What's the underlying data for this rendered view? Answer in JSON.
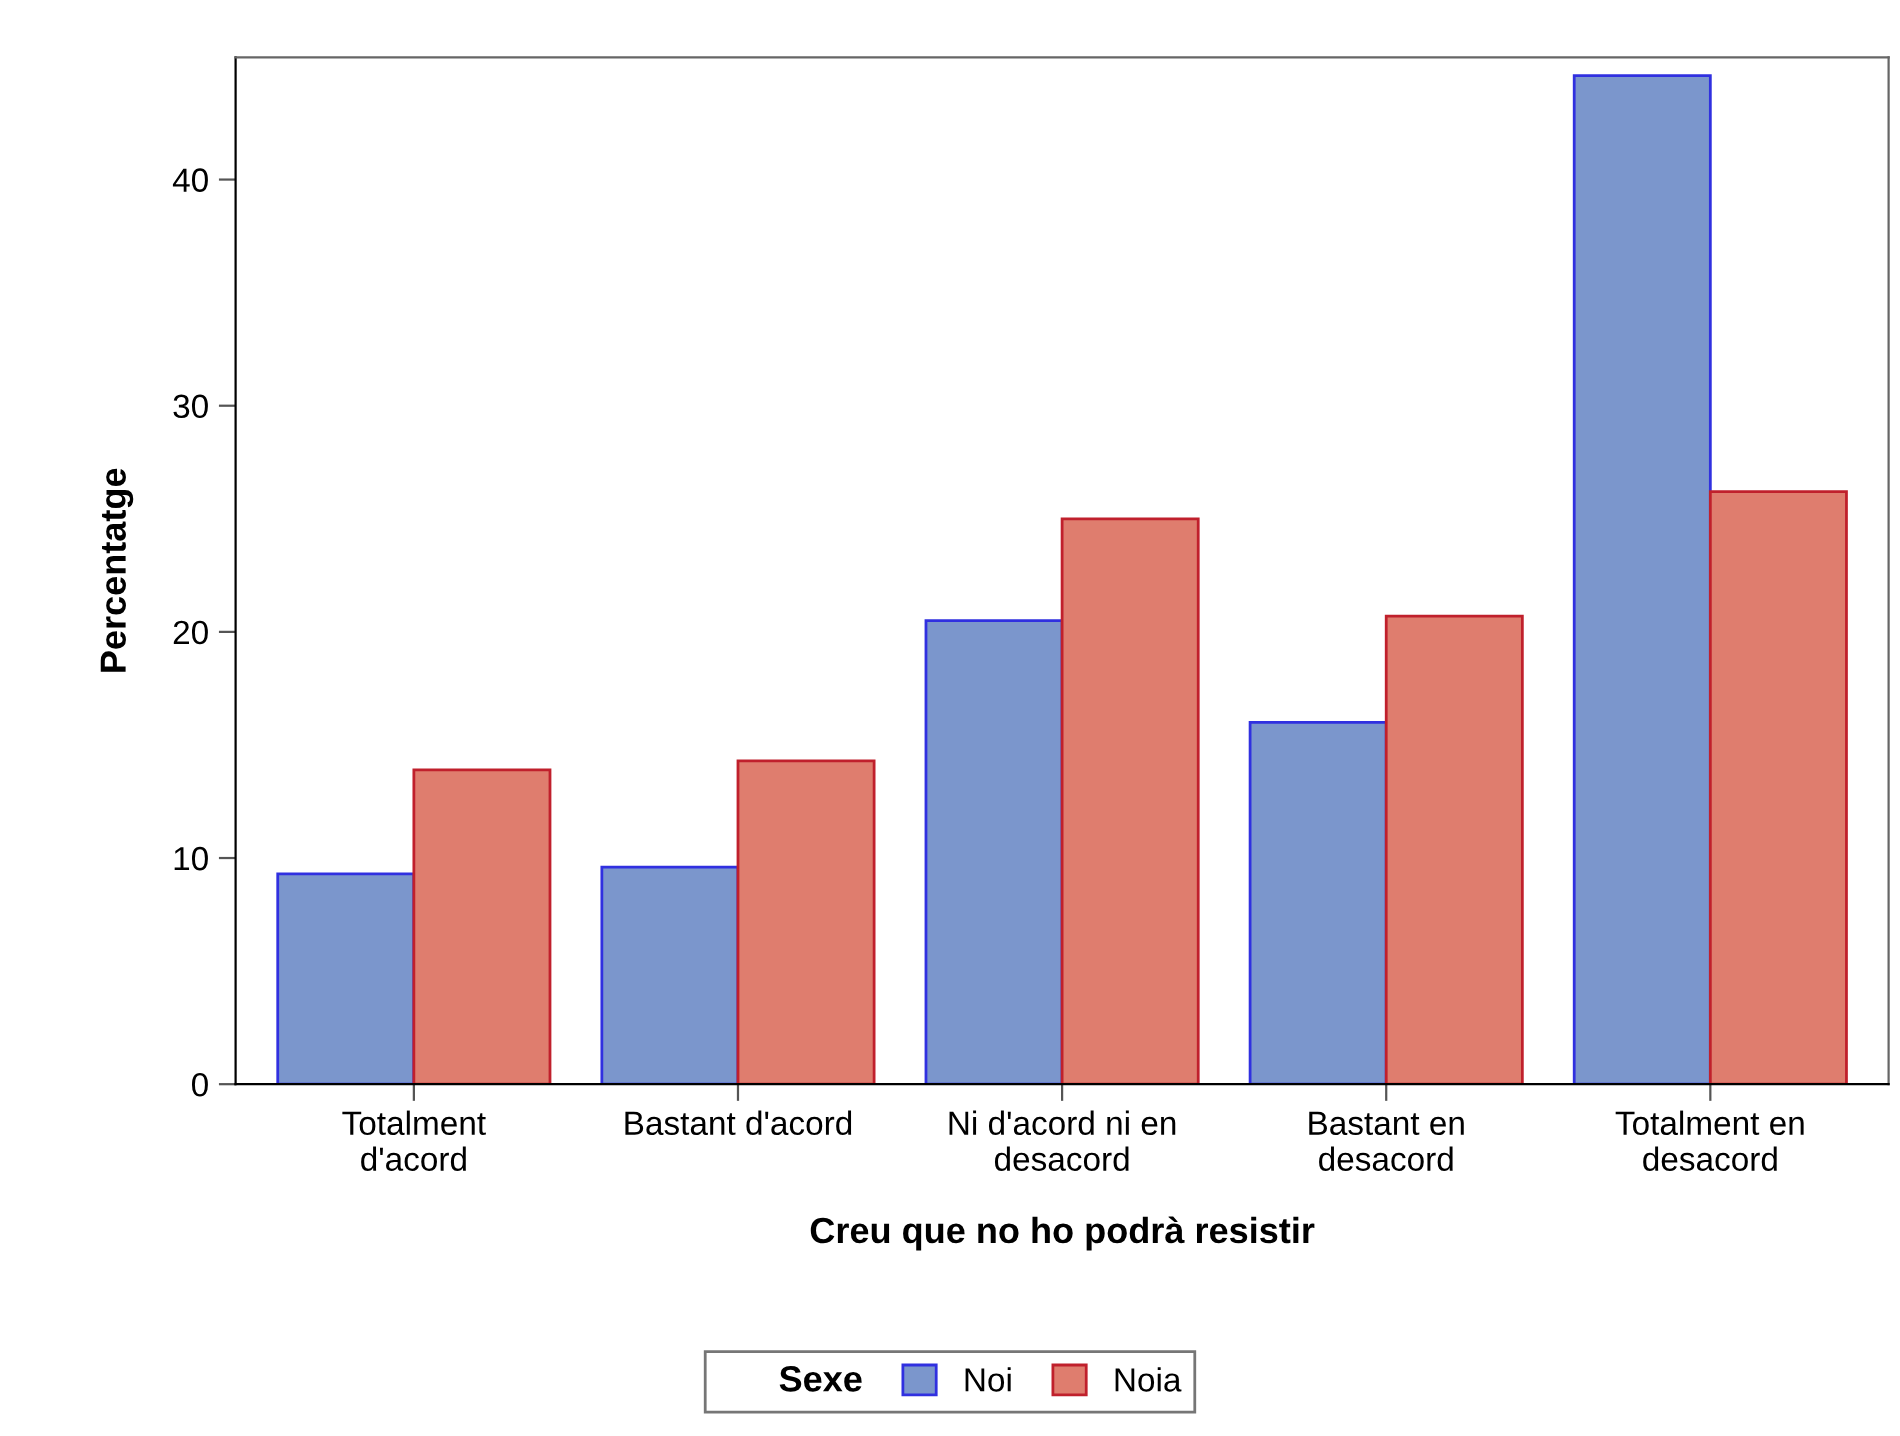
{
  "chart_data": {
    "type": "bar",
    "xlabel": "Creu que no ho podrà resistir",
    "ylabel": "Percentatge",
    "legend_title": "Sexe",
    "categories": [
      "Totalment\nd'acord",
      "Bastant d'acord",
      "Ni d'acord ni en\ndesacord",
      "Bastant en\ndesacord",
      "Totalment en\ndesacord"
    ],
    "series": [
      {
        "name": "Noi",
        "color": "#7b96cc",
        "values": [
          9.3,
          9.6,
          20.5,
          16.0,
          44.6
        ]
      },
      {
        "name": "Noia",
        "color": "#df7d6e",
        "values": [
          13.9,
          14.3,
          25.0,
          20.7,
          26.2
        ]
      }
    ],
    "ylim": [
      0,
      45.4
    ],
    "yticks": [
      0,
      10,
      20,
      30,
      40
    ],
    "grid": false,
    "legend": "bottom"
  }
}
